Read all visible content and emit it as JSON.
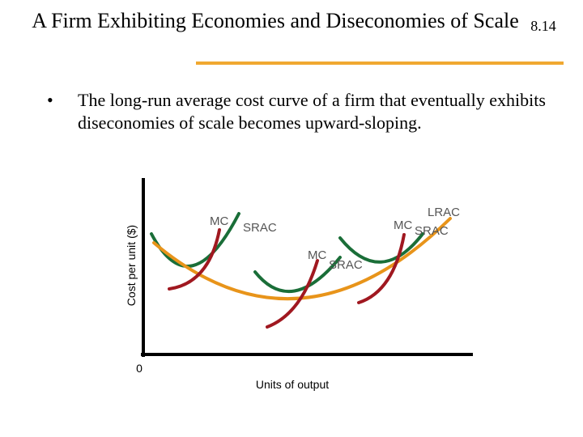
{
  "slide": {
    "title": "A Firm Exhibiting Economies and Diseconomies of Scale",
    "number": "8.14",
    "bullet": "The long-run average cost curve of a firm that eventually exhibits diseconomies of scale becomes upward-sloping.",
    "bullet_marker": "•"
  },
  "colors": {
    "rule": "#f0a830",
    "mc": "#a01820",
    "srac": "#1a6e38",
    "lrac": "#e8941a",
    "label": "#555555",
    "axis": "#000000"
  },
  "chart": {
    "ylabel": "Cost per unit ($)",
    "xlabel": "Units of output",
    "origin": "0",
    "labels": {
      "mc1": "MC",
      "srac1": "SRAC",
      "mc2": "MC",
      "srac2": "SRAC",
      "mc3": "MC",
      "srac3": "SRAC",
      "lrac": "LRAC"
    }
  }
}
